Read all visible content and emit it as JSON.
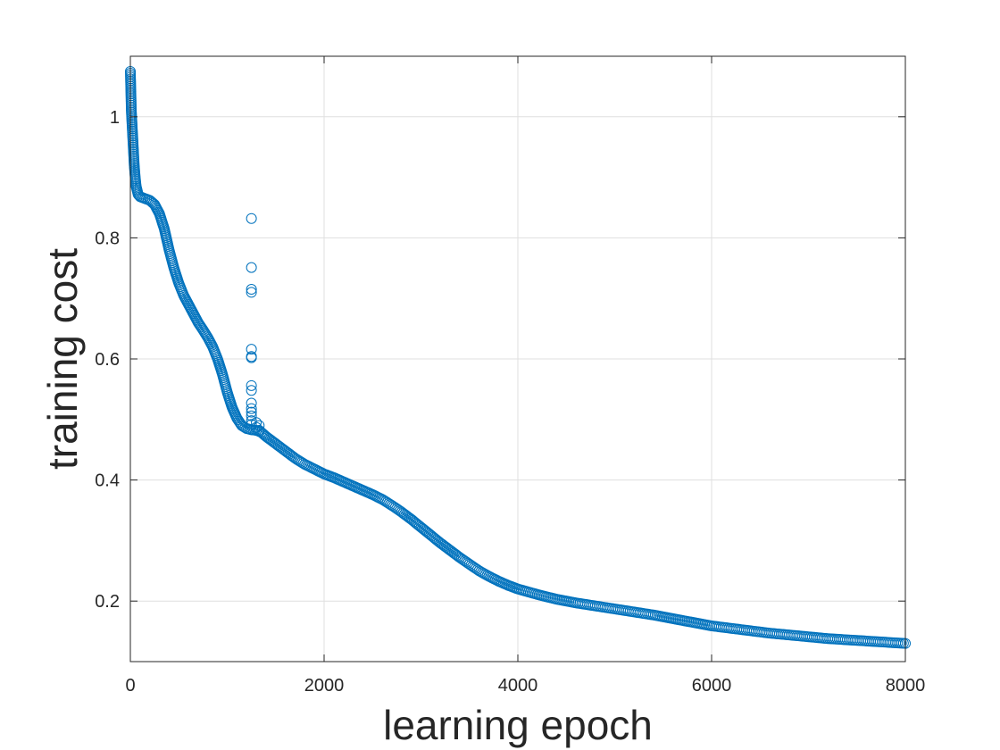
{
  "chart_data": {
    "type": "scatter",
    "title": "",
    "xlabel": "learning epoch",
    "ylabel": "training cost",
    "xlim": [
      0,
      8000
    ],
    "ylim": [
      0.1,
      1.1
    ],
    "xticks": [
      0,
      2000,
      4000,
      6000,
      8000
    ],
    "xtick_labels": [
      "0",
      "2000",
      "4000",
      "6000",
      "8000"
    ],
    "yticks": [
      0.2,
      0.4,
      0.6,
      0.8,
      1.0
    ],
    "ytick_labels": [
      "0.2",
      "0.4",
      "0.6",
      "0.8",
      "1"
    ],
    "grid": true,
    "marker": "open-circle",
    "color": "#0072BD",
    "series": [
      {
        "x": [
          0,
          10,
          20,
          30,
          40,
          50,
          60,
          80,
          100,
          150,
          200,
          250,
          300,
          350,
          400,
          450,
          500,
          550,
          600,
          650,
          700,
          750,
          800,
          850,
          900,
          950,
          1000,
          1050,
          1100,
          1150,
          1200,
          1250,
          1300,
          1350,
          1400,
          1500,
          1600,
          1700,
          1800,
          1900,
          2000,
          2100,
          2200,
          2300,
          2400,
          2500,
          2600,
          2700,
          2800,
          2900,
          3000,
          3100,
          3200,
          3300,
          3400,
          3500,
          3600,
          3700,
          3800,
          3900,
          4000,
          4200,
          4400,
          4600,
          4800,
          5000,
          5200,
          5400,
          5600,
          5800,
          6000,
          6200,
          6400,
          6600,
          6800,
          7000,
          7200,
          7400,
          7600,
          7800,
          8000
        ],
        "y": [
          1.075,
          1.01,
          0.98,
          0.95,
          0.92,
          0.9,
          0.885,
          0.872,
          0.868,
          0.865,
          0.862,
          0.855,
          0.84,
          0.815,
          0.78,
          0.75,
          0.725,
          0.705,
          0.69,
          0.675,
          0.66,
          0.648,
          0.635,
          0.62,
          0.6,
          0.575,
          0.545,
          0.52,
          0.502,
          0.49,
          0.485,
          0.483,
          0.482,
          0.479,
          0.472,
          0.46,
          0.448,
          0.436,
          0.426,
          0.418,
          0.41,
          0.404,
          0.397,
          0.39,
          0.383,
          0.376,
          0.368,
          0.358,
          0.347,
          0.335,
          0.322,
          0.309,
          0.296,
          0.284,
          0.272,
          0.261,
          0.25,
          0.241,
          0.233,
          0.226,
          0.22,
          0.211,
          0.203,
          0.197,
          0.192,
          0.187,
          0.182,
          0.177,
          0.171,
          0.165,
          0.159,
          0.155,
          0.151,
          0.147,
          0.144,
          0.141,
          0.138,
          0.136,
          0.134,
          0.132,
          0.13
        ]
      },
      {
        "x": [
          1250,
          1250,
          1250,
          1250,
          1250,
          1250,
          1250,
          1250,
          1250,
          1250,
          1250,
          1250,
          1250,
          1250,
          1250,
          1300,
          1300,
          1330,
          1330
        ],
        "y": [
          0.832,
          0.751,
          0.715,
          0.71,
          0.616,
          0.604,
          0.602,
          0.556,
          0.548,
          0.527,
          0.518,
          0.512,
          0.506,
          0.498,
          0.492,
          0.495,
          0.487,
          0.49,
          0.482
        ]
      }
    ]
  }
}
